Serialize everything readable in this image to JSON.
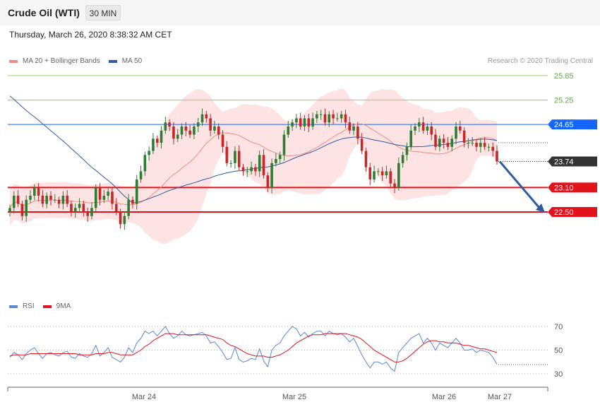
{
  "header": {
    "title": "Crude Oil (WTI)",
    "timeframe": "30 MIN"
  },
  "timestamp": "Thursday, March 26, 2020 8:38:32 AM CET",
  "legend_main": [
    {
      "label": "MA 20 + Bollinger Bands",
      "color": "#f28b82"
    },
    {
      "label": "MA 50",
      "color": "#2e5c9e"
    }
  ],
  "legend_rsi": [
    {
      "label": "RSI",
      "color": "#5b86d9"
    },
    {
      "label": "9MA",
      "color": "#e3131b"
    }
  ],
  "credit": "Research © 2020 Trading Central",
  "chart_data": [
    {
      "type": "candlestick",
      "title": "Crude Oil (WTI)",
      "timeframe": "30 MIN",
      "x_labels": [
        "Mar 24",
        "Mar 25",
        "Mar 26",
        "Mar 27"
      ],
      "ylim": [
        21.3,
        26.3
      ],
      "levels": [
        {
          "label": "25.85",
          "value": 25.85,
          "color": "#8bc34a",
          "style": "target"
        },
        {
          "label": "25.25",
          "value": 25.25,
          "color": "#8bc34a",
          "style": "target"
        },
        {
          "label": "24.65",
          "value": 24.65,
          "color": "#1565ff",
          "style": "resistance"
        },
        {
          "label": "23.74",
          "value": 23.74,
          "color": "#333333",
          "style": "last"
        },
        {
          "label": "23.10",
          "value": 23.1,
          "color": "#e3131b",
          "style": "support"
        },
        {
          "label": "22.50",
          "value": 22.5,
          "color": "#e3131b",
          "style": "support"
        }
      ],
      "forecast": {
        "from": 23.74,
        "to": 22.5,
        "color": "#2e5c9e"
      },
      "ohlc_close": [
        22.6,
        22.9,
        22.7,
        22.4,
        22.8,
        22.9,
        23.1,
        22.9,
        22.7,
        22.9,
        22.8,
        22.8,
        22.7,
        22.9,
        22.7,
        22.5,
        22.6,
        22.7,
        22.5,
        22.4,
        22.6,
        23.1,
        22.8,
        22.9,
        23.0,
        22.7,
        22.5,
        22.2,
        22.4,
        22.8,
        22.7,
        23.3,
        23.5,
        23.9,
        24.0,
        24.3,
        24.2,
        24.5,
        24.7,
        24.6,
        24.3,
        24.4,
        24.6,
        24.5,
        24.4,
        24.6,
        24.7,
        24.9,
        24.8,
        24.5,
        24.6,
        24.4,
        24.1,
        23.7,
        23.7,
        24.0,
        23.6,
        23.5,
        23.5,
        23.6,
        23.5,
        23.9,
        23.4,
        23.1,
        23.7,
        23.8,
        23.9,
        24.4,
        24.6,
        24.7,
        24.8,
        24.6,
        24.8,
        24.6,
        24.8,
        24.9,
        24.9,
        24.7,
        24.9,
        24.8,
        24.8,
        24.9,
        24.7,
        24.5,
        24.6,
        24.3,
        24.0,
        23.6,
        23.3,
        23.5,
        23.5,
        23.4,
        23.5,
        23.2,
        23.1,
        23.7,
        23.9,
        24.1,
        24.5,
        24.6,
        24.7,
        24.5,
        24.6,
        24.4,
        24.1,
        24.3,
        24.2,
        24.1,
        24.3,
        24.6,
        24.5,
        24.2,
        24.2,
        24.2,
        24.1,
        24.2,
        24.1,
        24.1,
        24.0,
        23.74
      ],
      "series": [
        {
          "name": "MA 20 + Bollinger Bands",
          "color": "#f28b82"
        },
        {
          "name": "MA 50",
          "color": "#2e5c9e"
        }
      ]
    },
    {
      "type": "line",
      "name": "RSI",
      "yticks": [
        70,
        50,
        30
      ],
      "ylim": [
        25,
        75
      ],
      "series": [
        {
          "name": "RSI",
          "color": "#5b86d9",
          "values": [
            44,
            48,
            46,
            42,
            47,
            50,
            52,
            47,
            43,
            47,
            48,
            46,
            45,
            48,
            49,
            44,
            43,
            47,
            45,
            44,
            47,
            54,
            45,
            48,
            52,
            44,
            42,
            40,
            44,
            52,
            48,
            56,
            60,
            66,
            64,
            66,
            62,
            66,
            70,
            64,
            60,
            62,
            66,
            63,
            62,
            63,
            64,
            65,
            62,
            56,
            57,
            53,
            48,
            42,
            43,
            52,
            42,
            40,
            41,
            43,
            42,
            51,
            41,
            36,
            50,
            54,
            56,
            62,
            66,
            70,
            68,
            62,
            65,
            61,
            64,
            66,
            66,
            62,
            66,
            64,
            63,
            64,
            61,
            57,
            60,
            53,
            46,
            40,
            35,
            40,
            40,
            38,
            40,
            35,
            32,
            48,
            52,
            56,
            60,
            62,
            64,
            56,
            60,
            56,
            50,
            56,
            54,
            52,
            56,
            60,
            56,
            50,
            50,
            51,
            48,
            50,
            49,
            48,
            44,
            38
          ]
        },
        {
          "name": "9MA",
          "color": "#e3131b",
          "values": [
            45,
            46,
            46,
            46,
            46,
            47,
            47,
            47,
            47,
            47,
            47,
            47,
            47,
            47,
            47,
            47,
            47,
            46,
            46,
            46,
            46,
            47,
            47,
            47,
            48,
            48,
            47,
            46,
            46,
            46,
            46,
            48,
            50,
            53,
            55,
            58,
            60,
            62,
            64,
            64,
            64,
            63,
            63,
            63,
            63,
            63,
            63,
            63,
            63,
            62,
            61,
            60,
            59,
            56,
            54,
            53,
            51,
            49,
            47,
            46,
            45,
            45,
            45,
            44,
            44,
            45,
            46,
            48,
            50,
            53,
            56,
            58,
            60,
            62,
            63,
            63,
            63,
            64,
            64,
            64,
            64,
            64,
            64,
            63,
            62,
            61,
            59,
            56,
            53,
            50,
            48,
            46,
            44,
            42,
            40,
            40,
            41,
            43,
            46,
            49,
            52,
            55,
            57,
            58,
            58,
            57,
            57,
            56,
            56,
            56,
            55,
            54,
            54,
            53,
            52,
            51,
            51,
            50,
            49,
            48
          ]
        }
      ]
    }
  ]
}
